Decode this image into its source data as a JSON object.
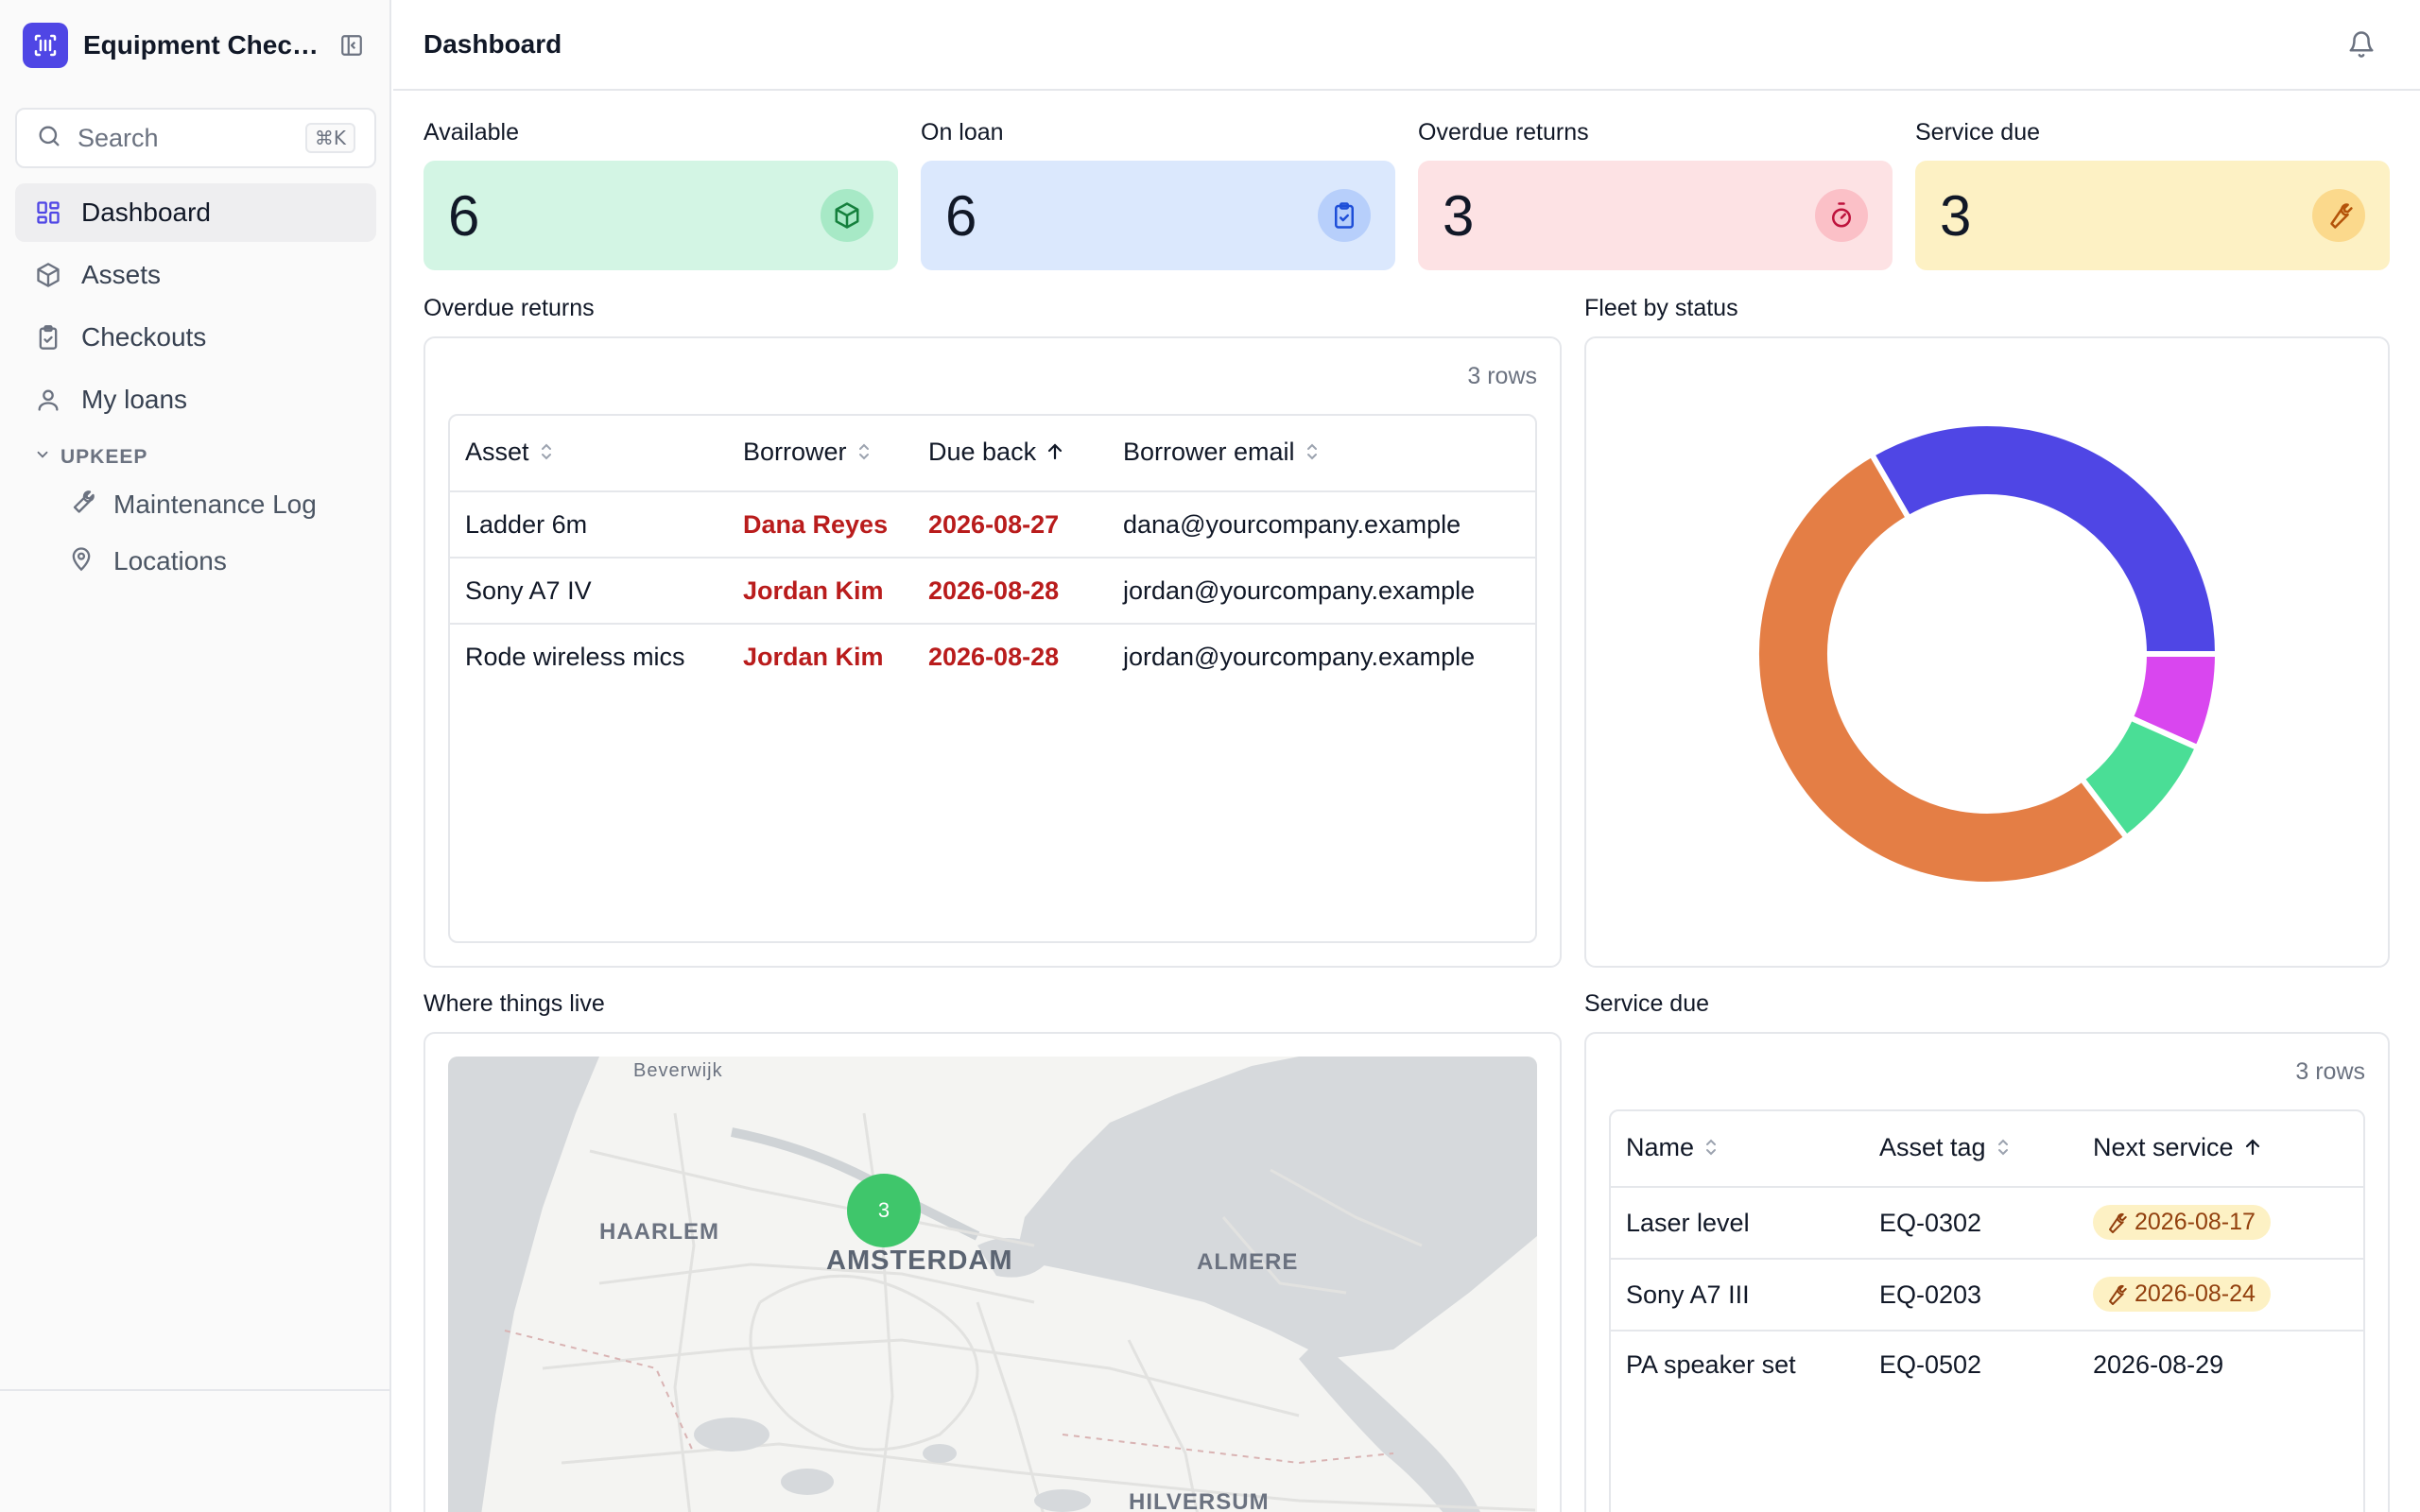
{
  "app": {
    "title": "Equipment Checkout"
  },
  "search": {
    "placeholder": "Search",
    "shortcut": "⌘K"
  },
  "nav": {
    "items": [
      {
        "label": "Dashboard",
        "icon": "dashboard-icon",
        "active": true
      },
      {
        "label": "Assets",
        "icon": "box-icon"
      },
      {
        "label": "Checkouts",
        "icon": "clipboard-check-icon"
      },
      {
        "label": "My loans",
        "icon": "user-icon"
      }
    ],
    "group": {
      "label": "UPKEEP",
      "items": [
        {
          "label": "Maintenance Log",
          "icon": "wrench-icon"
        },
        {
          "label": "Locations",
          "icon": "map-pin-icon"
        }
      ]
    }
  },
  "header": {
    "title": "Dashboard"
  },
  "stats": [
    {
      "label": "Available",
      "value": "6",
      "icon": "box-icon",
      "bg": "#d3f5e4",
      "icon_bg": "#a7e9c6",
      "icon_color": "#15803d"
    },
    {
      "label": "On loan",
      "value": "6",
      "icon": "clipboard-check-icon",
      "bg": "#dbe8fd",
      "icon_bg": "#b7cffb",
      "icon_color": "#1d4ed8"
    },
    {
      "label": "Overdue returns",
      "value": "3",
      "icon": "stopwatch-icon",
      "bg": "#fde2e4",
      "icon_bg": "#fbc0c7",
      "icon_color": "#be123c"
    },
    {
      "label": "Service due",
      "value": "3",
      "icon": "wrench-icon",
      "bg": "#fdf1c4",
      "icon_bg": "#fbd98c",
      "icon_color": "#b45309"
    }
  ],
  "overdue": {
    "title": "Overdue returns",
    "rows_label": "3 rows",
    "columns": [
      "Asset",
      "Borrower",
      "Due back",
      "Borrower email"
    ],
    "rows": [
      {
        "asset": "Ladder 6m",
        "borrower": "Dana Reyes",
        "due": "2026-08-27",
        "email": "dana@yourcompany.example"
      },
      {
        "asset": "Sony A7 IV",
        "borrower": "Jordan Kim",
        "due": "2026-08-28",
        "email": "jordan@yourcompany.example"
      },
      {
        "asset": "Rode wireless mics",
        "borrower": "Jordan Kim",
        "due": "2026-08-28",
        "email": "jordan@yourcompany.example"
      }
    ]
  },
  "fleet": {
    "title": "Fleet by status"
  },
  "chart_data": {
    "type": "pie",
    "donut": true,
    "legend": "none",
    "slices": [
      {
        "value": 25,
        "color": "#4f46e5"
      },
      {
        "value": 5,
        "color": "#d946ef"
      },
      {
        "value": 6,
        "color": "#4ade96"
      },
      {
        "value": 39,
        "color": "#e47e45"
      }
    ]
  },
  "map": {
    "title": "Where things live",
    "places": [
      "Beverwijk",
      "HAARLEM",
      "AMSTERDAM",
      "ALMERE",
      "HILVERSUM"
    ],
    "cluster_count": "3"
  },
  "service": {
    "title": "Service due",
    "rows_label": "3 rows",
    "columns": [
      "Name",
      "Asset tag",
      "Next service"
    ],
    "rows": [
      {
        "name": "Laser level",
        "tag": "EQ-0302",
        "next": "2026-08-17",
        "badge": true
      },
      {
        "name": "Sony A7 III",
        "tag": "EQ-0203",
        "next": "2026-08-24",
        "badge": true
      },
      {
        "name": "PA speaker set",
        "tag": "EQ-0502",
        "next": "2026-08-29",
        "badge": false
      }
    ]
  }
}
